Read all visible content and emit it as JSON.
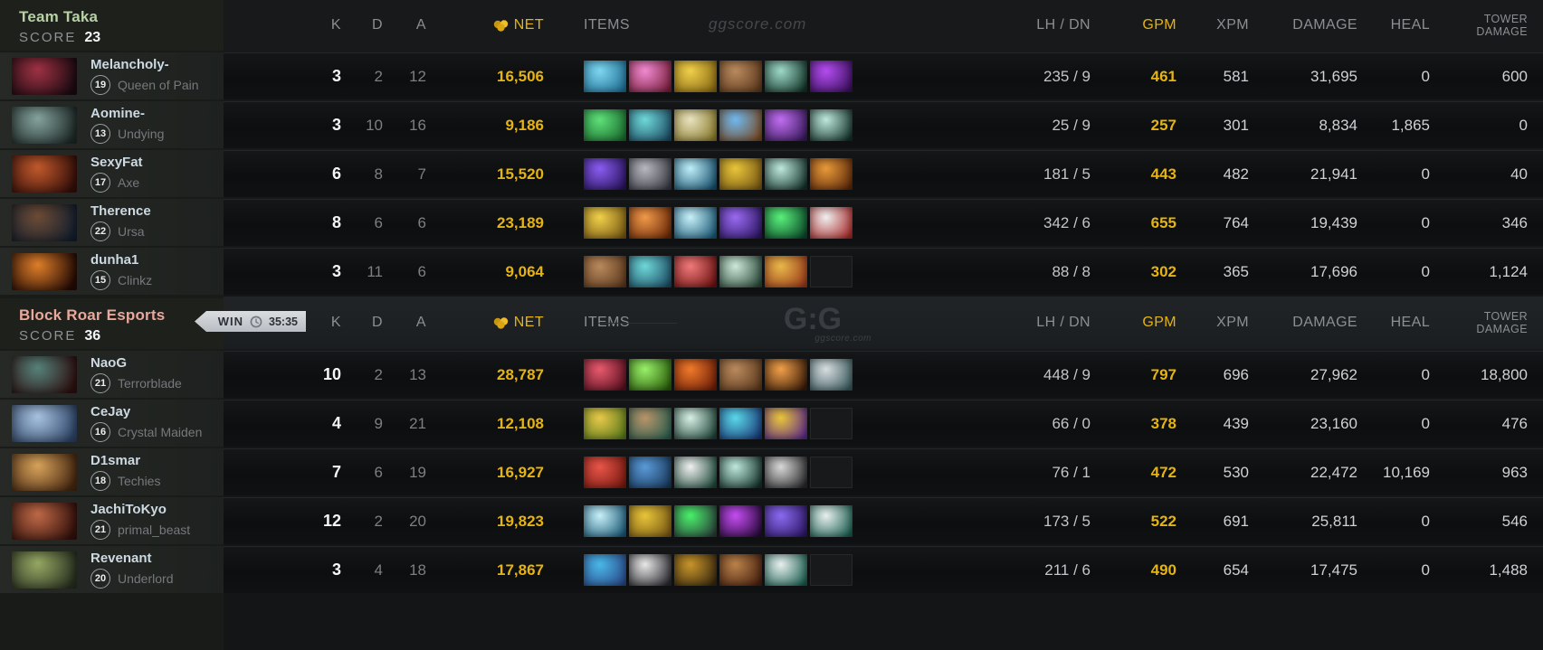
{
  "brand": {
    "watermark": "ggscore.com",
    "logo": "G:G",
    "logo_sub": "ggscore.com"
  },
  "match": {
    "result": "WIN",
    "duration": "35:35"
  },
  "columns": {
    "k": "K",
    "d": "D",
    "a": "A",
    "net": "NET",
    "items": "ITEMS",
    "lhdn": "LH / DN",
    "gpm": "GPM",
    "xpm": "XPM",
    "damage": "DAMAGE",
    "heal": "HEAL",
    "tower_line1": "TOWER",
    "tower_line2": "DAMAGE"
  },
  "accent_colors": {
    "gold": "#e5b412",
    "team1": "#b7d1a4",
    "team2": "#e9a89c"
  },
  "teams": [
    {
      "name": "Team Taka",
      "score_label": "SCORE",
      "score": "23",
      "players": [
        {
          "name": "Melancholy-",
          "level": "19",
          "hero": "Queen of Pain",
          "portrait": [
            "#a03244",
            "#1c0b12"
          ]
        },
        {
          "name": "Aomine-",
          "level": "13",
          "hero": "Undying",
          "portrait": [
            "#86a49e",
            "#202c2a"
          ]
        },
        {
          "name": "SexyFat",
          "level": "17",
          "hero": "Axe",
          "portrait": [
            "#c25a2c",
            "#38100a"
          ]
        },
        {
          "name": "Therence",
          "level": "22",
          "hero": "Ursa",
          "portrait": [
            "#6d4c36",
            "#16202e"
          ]
        },
        {
          "name": "dunha1",
          "level": "15",
          "hero": "Clinkz",
          "portrait": [
            "#e07f2a",
            "#260c04"
          ]
        }
      ],
      "rows": [
        {
          "k": "3",
          "d": "2",
          "a": "12",
          "net": "16,506",
          "lh": "235",
          "dn": "9",
          "gpm": "461",
          "xpm": "581",
          "damage": "31,695",
          "heal": "0",
          "tower": "600",
          "items": [
            {
              "n": "bottle",
              "c": [
                "#7ed7f0",
                "#1f6f96"
              ]
            },
            {
              "n": "dagon",
              "c": [
                "#f08ad2",
                "#7a1f3c"
              ]
            },
            {
              "n": "solar-crest",
              "c": [
                "#f0d04a",
                "#8a6a14"
              ]
            },
            {
              "n": "boots",
              "c": [
                "#b98a5e",
                "#5e3a1d"
              ]
            },
            {
              "n": "green-wand",
              "c": [
                "#9fd9c8",
                "#123528"
              ]
            },
            {
              "n": "witch-blade",
              "c": [
                "#b44df0",
                "#3c1060"
              ]
            }
          ]
        },
        {
          "k": "3",
          "d": "10",
          "a": "16",
          "net": "9,186",
          "lh": "25",
          "dn": "9",
          "gpm": "257",
          "xpm": "301",
          "damage": "8,834",
          "heal": "1,865",
          "tower": "0",
          "items": [
            {
              "n": "tranquil-boots",
              "c": [
                "#5fe07a",
                "#1a6e2e"
              ]
            },
            {
              "n": "blue-creature",
              "c": [
                "#6fd8d8",
                "#1d4e66"
              ]
            },
            {
              "n": "golden-idol",
              "c": [
                "#e8e3c0",
                "#8a7a2a"
              ]
            },
            {
              "n": "aether-lens",
              "c": [
                "#6fb8f0",
                "#7a4a22"
              ]
            },
            {
              "n": "glimmer-orb",
              "c": [
                "#c06ef0",
                "#3a1a5e"
              ]
            },
            {
              "n": "magic-wand",
              "c": [
                "#bfe8dd",
                "#14332a"
              ]
            }
          ]
        },
        {
          "k": "6",
          "d": "8",
          "a": "7",
          "net": "15,520",
          "lh": "181",
          "dn": "5",
          "gpm": "443",
          "xpm": "482",
          "damage": "21,941",
          "heal": "0",
          "tower": "40",
          "items": [
            {
              "n": "arcane-boots",
              "c": [
                "#8a5cf0",
                "#2a1560"
              ]
            },
            {
              "n": "gray-shroud",
              "c": [
                "#b8b8c0",
                "#3a3a44"
              ]
            },
            {
              "n": "shivas-guard",
              "c": [
                "#bfeef8",
                "#16506e"
              ]
            },
            {
              "n": "solar-crest",
              "c": [
                "#e8c53a",
                "#7a5a14"
              ]
            },
            {
              "n": "magic-wand",
              "c": [
                "#bfe8dd",
                "#14332a"
              ]
            },
            {
              "n": "orange-blade",
              "c": [
                "#e89a3a",
                "#5e2a0a"
              ]
            }
          ]
        },
        {
          "k": "8",
          "d": "6",
          "a": "6",
          "net": "23,189",
          "lh": "342",
          "dn": "6",
          "gpm": "655",
          "xpm": "764",
          "damage": "19,439",
          "heal": "0",
          "tower": "346",
          "items": [
            {
              "n": "solar-crest",
              "c": [
                "#f0d04a",
                "#7a5a14"
              ]
            },
            {
              "n": "battle-fury",
              "c": [
                "#f09a4a",
                "#6e2a08"
              ]
            },
            {
              "n": "eye-of-skadi",
              "c": [
                "#c8f0f8",
                "#1a5a78"
              ]
            },
            {
              "n": "purple-boots",
              "c": [
                "#9a6af0",
                "#2e1866"
              ]
            },
            {
              "n": "ethereal-blade",
              "c": [
                "#5af07a",
                "#0a4a2a"
              ]
            },
            {
              "n": "white-hammer",
              "c": [
                "#f0f0f0",
                "#a82a2a"
              ]
            }
          ]
        },
        {
          "k": "3",
          "d": "11",
          "a": "6",
          "net": "9,064",
          "lh": "88",
          "dn": "8",
          "gpm": "302",
          "xpm": "365",
          "damage": "17,696",
          "heal": "0",
          "tower": "1,124",
          "items": [
            {
              "n": "boots",
              "c": [
                "#b98a5e",
                "#5e3a1d"
              ]
            },
            {
              "n": "blue-creature",
              "c": [
                "#6fd8d8",
                "#1d4e66"
              ]
            },
            {
              "n": "red-orb",
              "c": [
                "#f07a7a",
                "#6e1212"
              ]
            },
            {
              "n": "magic-wand",
              "c": [
                "#cfe8d8",
                "#2a4a3a"
              ]
            },
            {
              "n": "gold-medallion",
              "c": [
                "#e8b84a",
                "#9a3a1a"
              ]
            },
            null
          ]
        }
      ]
    },
    {
      "name": "Block Roar Esports",
      "score_label": "SCORE",
      "score": "36",
      "players": [
        {
          "name": "NaoG",
          "level": "21",
          "hero": "Terrorblade",
          "portrait": [
            "#57837b",
            "#2e1212"
          ]
        },
        {
          "name": "CeJay",
          "level": "16",
          "hero": "Crystal Maiden",
          "portrait": [
            "#a9c4e2",
            "#31486b"
          ]
        },
        {
          "name": "D1smar",
          "level": "18",
          "hero": "Techies",
          "portrait": [
            "#d9a45c",
            "#4a2a12"
          ]
        },
        {
          "name": "JachiToKyo",
          "level": "21",
          "hero": "primal_beast",
          "portrait": [
            "#c06a48",
            "#36120c"
          ]
        },
        {
          "name": "Revenant",
          "level": "20",
          "hero": "Underlord",
          "portrait": [
            "#97a964",
            "#2a3222"
          ]
        }
      ],
      "rows": [
        {
          "k": "10",
          "d": "2",
          "a": "13",
          "net": "28,787",
          "lh": "448",
          "dn": "9",
          "gpm": "797",
          "xpm": "696",
          "damage": "27,962",
          "heal": "0",
          "tower": "18,800",
          "items": [
            {
              "n": "red-lance",
              "c": [
                "#e85a6e",
                "#5a1020"
              ]
            },
            {
              "n": "ethereal-blade",
              "c": [
                "#9af06a",
                "#2a5e0a"
              ]
            },
            {
              "n": "orange-bloom",
              "c": [
                "#f07a2a",
                "#6e1e08"
              ]
            },
            {
              "n": "boots",
              "c": [
                "#b98a5e",
                "#5e3a1d"
              ]
            },
            {
              "n": "crossed-swords",
              "c": [
                "#f0a04a",
                "#3a1c08"
              ]
            },
            {
              "n": "silver-skull",
              "c": [
                "#d8dde0",
                "#3a5a5e"
              ]
            }
          ]
        },
        {
          "k": "4",
          "d": "9",
          "a": "21",
          "net": "12,108",
          "lh": "66",
          "dn": "0",
          "gpm": "378",
          "xpm": "439",
          "damage": "23,160",
          "heal": "0",
          "tower": "476",
          "items": [
            {
              "n": "guardian-greaves",
              "c": [
                "#e8c84a",
                "#5a7a1a"
              ]
            },
            {
              "n": "meteor-hammer",
              "c": [
                "#b9946a",
                "#2a5e4e"
              ]
            },
            {
              "n": "ghost-scepter",
              "c": [
                "#d8efe4",
                "#1e4438"
              ]
            },
            {
              "n": "blue-creature",
              "c": [
                "#5ad8e8",
                "#1a3a7a"
              ]
            },
            {
              "n": "hand-of-midas",
              "c": [
                "#e8c53a",
                "#5e2a8a"
              ]
            },
            null
          ]
        },
        {
          "k": "7",
          "d": "6",
          "a": "19",
          "net": "16,927",
          "lh": "76",
          "dn": "1",
          "gpm": "472",
          "xpm": "530",
          "damage": "22,472",
          "heal": "10,169",
          "tower": "963",
          "items": [
            {
              "n": "red-shield",
              "c": [
                "#e8554a",
                "#7a1a10"
              ]
            },
            {
              "n": "arcane-boots",
              "c": [
                "#5a9ad8",
                "#1a3a5e"
              ]
            },
            {
              "n": "white-cyclone",
              "c": [
                "#f0f0f0",
                "#1e4a3a"
              ]
            },
            {
              "n": "magic-wand",
              "c": [
                "#bfe8dd",
                "#14332a"
              ]
            },
            {
              "n": "silver-blade",
              "c": [
                "#d8d8d8",
                "#2a2a2a"
              ]
            },
            null
          ]
        },
        {
          "k": "12",
          "d": "2",
          "a": "20",
          "net": "19,823",
          "lh": "173",
          "dn": "5",
          "gpm": "522",
          "xpm": "691",
          "damage": "25,811",
          "heal": "0",
          "tower": "546",
          "items": [
            {
              "n": "eye-of-skadi",
              "c": [
                "#c8f0f8",
                "#1a5a78"
              ]
            },
            {
              "n": "solar-crest",
              "c": [
                "#e8c53a",
                "#7a5a14"
              ]
            },
            {
              "n": "green-gem",
              "c": [
                "#4af06a",
                "#2a3e3a"
              ]
            },
            {
              "n": "shadow-blade",
              "c": [
                "#c44df0",
                "#2a0a3e"
              ]
            },
            {
              "n": "purple-boots",
              "c": [
                "#8a6af0",
                "#2e1866"
              ]
            },
            {
              "n": "euls-scepter",
              "c": [
                "#e8f0ee",
                "#1a5e50"
              ]
            }
          ]
        },
        {
          "k": "3",
          "d": "4",
          "a": "18",
          "net": "17,867",
          "lh": "211",
          "dn": "6",
          "gpm": "490",
          "xpm": "654",
          "damage": "17,475",
          "heal": "0",
          "tower": "1,488",
          "items": [
            {
              "n": "blue-orb",
              "c": [
                "#4ab8e8",
                "#2a4a8a"
              ]
            },
            {
              "n": "feather-blade",
              "c": [
                "#e8e8e8",
                "#2a2a30"
              ]
            },
            {
              "n": "dark-helm",
              "c": [
                "#c8952a",
                "#3a2a10"
              ]
            },
            {
              "n": "gold-ring",
              "c": [
                "#b9824a",
                "#4a2210"
              ]
            },
            {
              "n": "euls-scepter",
              "c": [
                "#e8f0ee",
                "#1a5e50"
              ]
            },
            null
          ]
        }
      ]
    }
  ]
}
